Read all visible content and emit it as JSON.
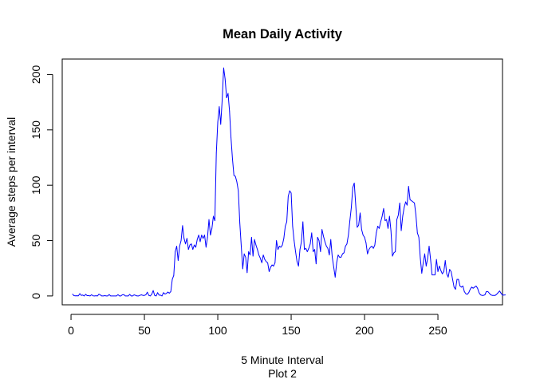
{
  "chart_data": {
    "type": "line",
    "title": "Mean Daily Activity",
    "xlabel": "5 Minute Interval",
    "xlabel2": "Plot 2",
    "ylabel": "Average  steps per interval",
    "xlim": [
      -6,
      294
    ],
    "ylim": [
      -8,
      214
    ],
    "x_ticks": [
      0,
      50,
      100,
      150,
      200,
      250
    ],
    "y_ticks": [
      0,
      50,
      100,
      150,
      200
    ],
    "grid": false,
    "legend": "none",
    "line_color": "#0000ff",
    "series": [
      {
        "x_start": 1,
        "x_step": 1,
        "values": [
          1.7,
          0.3,
          0.1,
          0.2,
          0.1,
          2.1,
          0.5,
          0.8,
          0.0,
          1.5,
          0.3,
          0.3,
          0.0,
          1.1,
          0.1,
          0.0,
          0.2,
          0.0,
          1.6,
          0.9,
          0.0,
          0.0,
          0.3,
          0.0,
          0.0,
          1.3,
          0.0,
          0.0,
          0.0,
          0.0,
          0.0,
          1.2,
          0.0,
          0.0,
          1.1,
          1.2,
          0.0,
          0.0,
          0.0,
          1.4,
          0.0,
          0.0,
          1.0,
          0.5,
          0.0,
          0.0,
          0.6,
          1.0,
          0.5,
          0.5,
          1.1,
          3.4,
          0.5,
          0.0,
          1.5,
          4.9,
          0.5,
          0.0,
          3.0,
          0.7,
          0.7,
          0.0,
          3.0,
          1.7,
          2.3,
          3.5,
          2.5,
          4.0,
          15.0,
          18.5,
          40.0,
          45.0,
          32.0,
          45.0,
          50.0,
          63.5,
          52.0,
          47.0,
          52.0,
          42.0,
          46.0,
          47.0,
          42.0,
          46.0,
          44.0,
          51.0,
          55.0,
          49.0,
          55.0,
          52.0,
          55.0,
          44.0,
          53.0,
          69.0,
          55.0,
          61.0,
          72.0,
          68.0,
          129.0,
          157.0,
          171.0,
          155.0,
          177.0,
          206.0,
          196.0,
          179.0,
          183.0,
          167.0,
          143.0,
          124.0,
          109.0,
          108.0,
          103.0,
          95.0,
          66.0,
          45.0,
          24.5,
          38.0,
          35.0,
          21.0,
          40.0,
          37.0,
          53.0,
          36.0,
          51.0,
          46.0,
          42.0,
          37.0,
          34.0,
          30.0,
          37.0,
          33.0,
          31.0,
          30.0,
          22.0,
          26.0,
          28.0,
          27.0,
          30.0,
          50.0,
          42.0,
          45.0,
          44.0,
          46.0,
          52.0,
          63.0,
          67.0,
          90.0,
          95.0,
          93.0,
          63.0,
          50.0,
          40.0,
          31.0,
          27.0,
          42.0,
          49.0,
          67.0,
          42.0,
          43.0,
          40.0,
          43.0,
          47.0,
          57.0,
          40.0,
          42.0,
          29.0,
          53.0,
          50.0,
          40.0,
          60.0,
          54.0,
          49.0,
          45.0,
          43.0,
          37.0,
          51.0,
          35.0,
          26.0,
          17.0,
          30.0,
          37.0,
          35.0,
          35.0,
          38.0,
          39.0,
          45.0,
          47.0,
          55.0,
          68.0,
          80.0,
          98.0,
          102.0,
          82.0,
          62.0,
          64.0,
          75.0,
          60.0,
          55.0,
          53.0,
          48.0,
          38.0,
          42.0,
          44.0,
          45.0,
          43.0,
          46.0,
          57.0,
          63.0,
          61.0,
          67.0,
          72.0,
          79.0,
          68.0,
          69.0,
          61.0,
          72.0,
          59.0,
          36.0,
          39.0,
          40.0,
          69.0,
          73.0,
          84.0,
          59.0,
          72.0,
          80.0,
          85.0,
          82.0,
          99.0,
          87.0,
          86.0,
          85.0,
          84.0,
          73.0,
          57.0,
          53.0,
          34.0,
          20.5,
          30.0,
          38.0,
          27.0,
          34.0,
          45.0,
          33.0,
          19.0,
          19.0,
          19.0,
          33.0,
          22.0,
          27.0,
          23.0,
          20.0,
          22.0,
          32.0,
          20.0,
          17.0,
          24.0,
          22.0,
          15.0,
          8.0,
          6.0,
          15.0,
          15.0,
          9.0,
          8.0,
          9.0,
          4.0,
          2.0,
          1.5,
          3.0,
          6.0,
          8.0,
          7.0,
          8.0,
          9.0,
          7.0,
          3.0,
          1.0,
          0.5,
          0.5,
          1.0,
          4.0,
          4.0,
          2.5,
          1.0,
          0.5,
          0.5,
          0.5,
          1.5,
          3.0,
          4.5,
          2.5,
          0.7,
          0.8,
          0.9
        ]
      }
    ]
  }
}
